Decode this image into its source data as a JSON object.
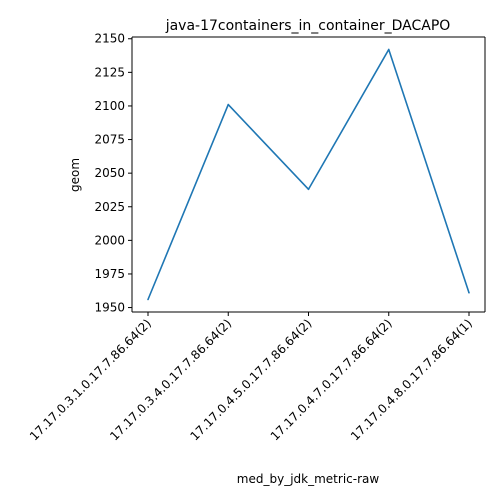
{
  "chart_data": {
    "type": "line",
    "title": "java-17containers_in_container_DACAPO",
    "xlabel": "med_by_jdk_metric-raw",
    "ylabel": "geom",
    "categories": [
      "17.17.0.3.1.0.17.7.86.64(2)",
      "17.17.0.3.4.0.17.7.86.64(2)",
      "17.17.0.4.5.0.17.7.86.64(2)",
      "17.17.0.4.7.0.17.7.86.64(2)",
      "17.17.0.4.8.0.17.7.86.64(1)"
    ],
    "series": [
      {
        "values": [
          1956,
          2101,
          2038,
          2142,
          1961
        ],
        "color": "#1f77b4"
      }
    ],
    "yticks": [
      1950,
      1975,
      2000,
      2025,
      2050,
      2075,
      2100,
      2125,
      2150
    ],
    "ylim": [
      1946.7,
      2151.3
    ],
    "grid": false,
    "legend": "none"
  }
}
